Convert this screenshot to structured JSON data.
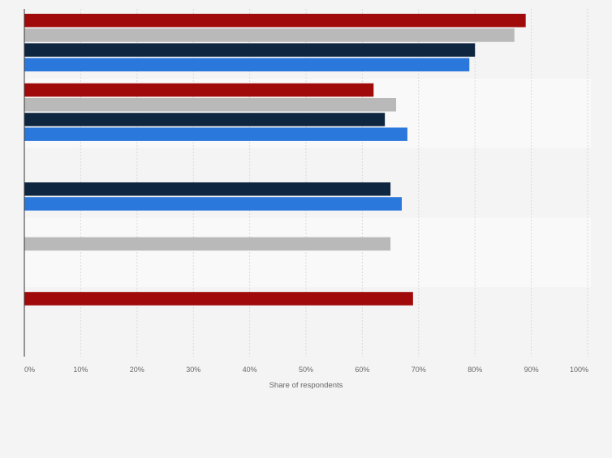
{
  "chart_data": {
    "type": "bar",
    "orientation": "horizontal",
    "categories": [
      "",
      "",
      "",
      "",
      ""
    ],
    "series": [
      {
        "color": "#a00a0a",
        "values": [
          89,
          62,
          null,
          null,
          69
        ]
      },
      {
        "color": "#b9b9b9",
        "values": [
          87,
          66,
          null,
          65,
          null
        ]
      },
      {
        "color": "#0f2640",
        "values": [
          80,
          64,
          65,
          null,
          null
        ]
      },
      {
        "color": "#2a78dc",
        "values": [
          79,
          68,
          67,
          null,
          null
        ]
      }
    ],
    "xlim": [
      0,
      100
    ],
    "x_ticks": [
      "0%",
      "10%",
      "20%",
      "30%",
      "40%",
      "50%",
      "60%",
      "70%",
      "80%",
      "90%",
      "100%"
    ],
    "xlabel": "Share of respondents",
    "grid": true,
    "legend": "none",
    "band_colors": [
      "#f4f4f4",
      "#f9f9f9"
    ]
  }
}
